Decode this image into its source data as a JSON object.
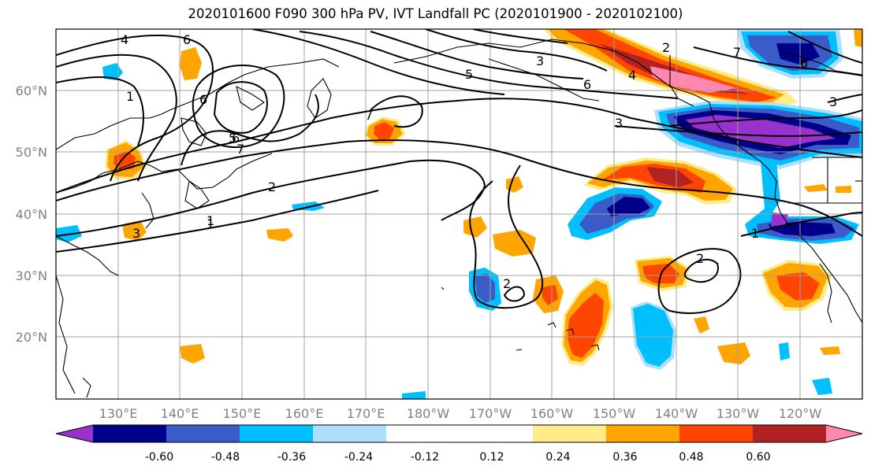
{
  "title": "2020101600 F090 300 hPa PV, IVT Landfall PC (2020101900 - 2020102100)",
  "latitude_labels": [
    "60°N",
    "50°N",
    "40°N",
    "30°N",
    "20°N"
  ],
  "longitude_labels": [
    "130°E",
    "140°E",
    "150°E",
    "160°E",
    "170°E",
    "180°W",
    "170°W",
    "160°W",
    "150°W",
    "140°W",
    "130°W",
    "120°W"
  ],
  "colorbar": {
    "colors": [
      "#9932CC",
      "#00008B",
      "#3A5BC8",
      "#00BFFF",
      "#ADE0FF",
      "#FFFFFF",
      "#FFFFFF",
      "#FFEB8A",
      "#FFA500",
      "#FF4500",
      "#B22222",
      "#FF88B0"
    ],
    "tick_labels": [
      "-0.60",
      "-0.48",
      "-0.36",
      "-0.24",
      "-0.12",
      "0.12",
      "0.24",
      "0.36",
      "0.48",
      "0.60"
    ]
  },
  "contour_labels": [
    "4",
    "6",
    "1",
    "6",
    "5",
    "7",
    "6",
    "3",
    "1",
    "7",
    "4",
    "2",
    "3",
    "6",
    "5",
    "6",
    "7",
    "3",
    "3",
    "2",
    "1",
    "1",
    "2",
    "2"
  ]
}
